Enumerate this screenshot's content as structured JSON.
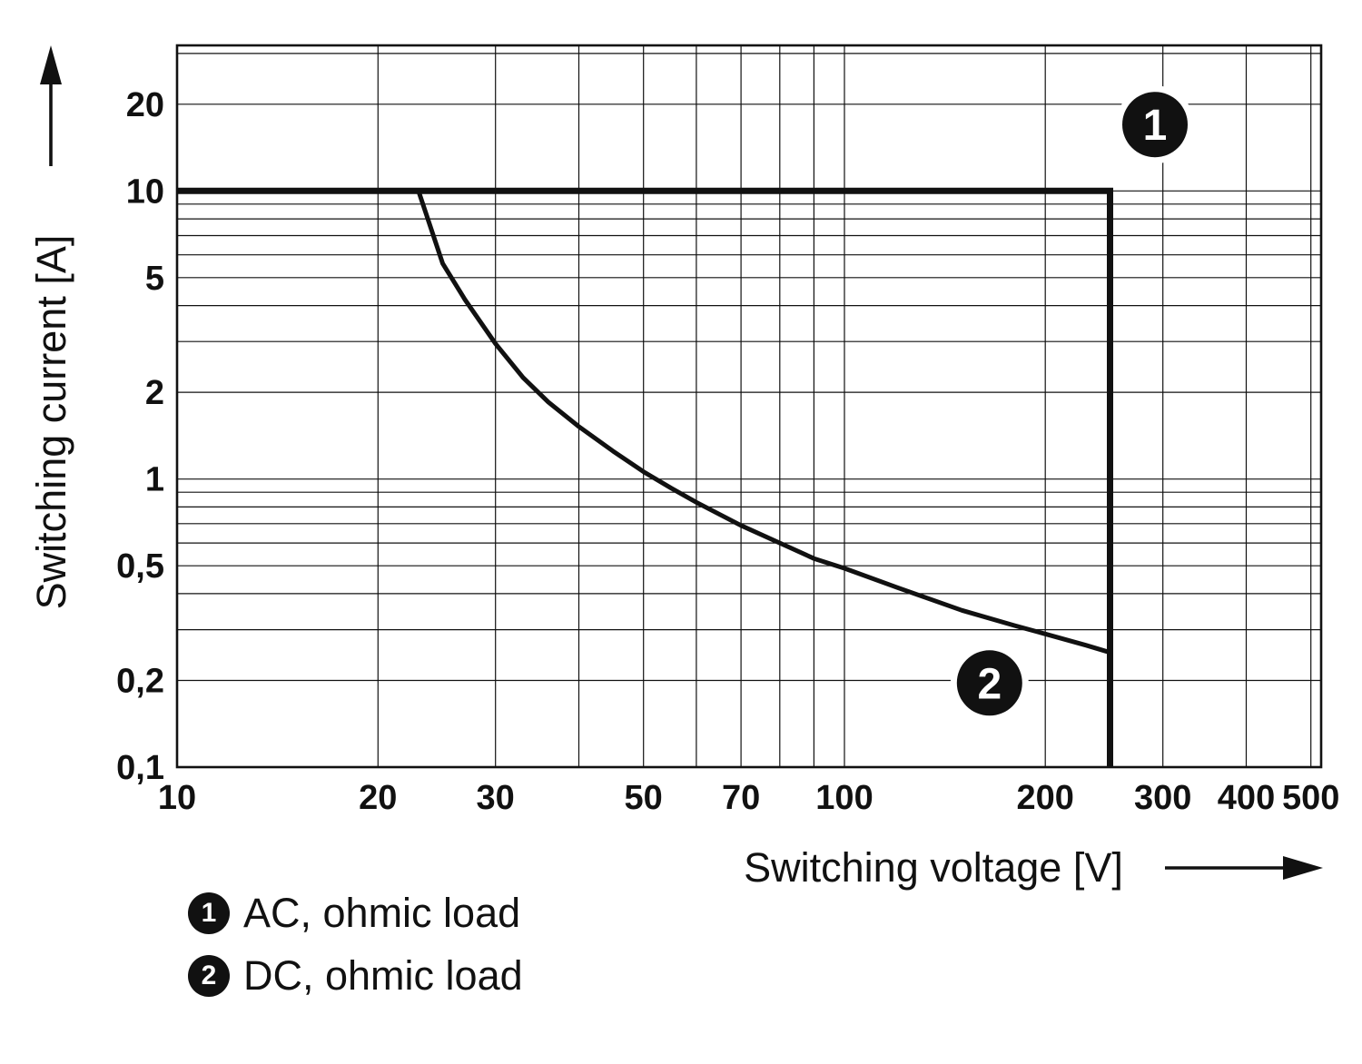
{
  "chart_data": {
    "type": "line",
    "title": "",
    "xlabel": "Switching voltage [V]",
    "ylabel": "Switching current [A]",
    "x_scale": "log",
    "y_scale": "log",
    "xlim": [
      10,
      518
    ],
    "ylim": [
      0.1,
      32
    ],
    "grid": true,
    "legend_position": "below-left",
    "ink_color": "#111111",
    "background": "#ffffff",
    "x_ticks": [
      {
        "v": 10,
        "label": "10"
      },
      {
        "v": 20,
        "label": "20"
      },
      {
        "v": 30,
        "label": "30"
      },
      {
        "v": 50,
        "label": "50"
      },
      {
        "v": 70,
        "label": "70"
      },
      {
        "v": 100,
        "label": "100"
      },
      {
        "v": 200,
        "label": "200"
      },
      {
        "v": 300,
        "label": "300"
      },
      {
        "v": 400,
        "label": "400"
      },
      {
        "v": 500,
        "label": "500"
      }
    ],
    "y_ticks": [
      {
        "v": 20,
        "label": "20"
      },
      {
        "v": 10,
        "label": "10"
      },
      {
        "v": 5,
        "label": "5"
      },
      {
        "v": 2,
        "label": "2"
      },
      {
        "v": 1,
        "label": "1"
      },
      {
        "v": 0.5,
        "label": "0,5"
      },
      {
        "v": 0.2,
        "label": "0,2"
      },
      {
        "v": 0.1,
        "label": "0,1"
      }
    ],
    "x_gridlines": [
      10,
      20,
      30,
      40,
      50,
      60,
      70,
      80,
      90,
      100,
      200,
      300,
      400,
      500
    ],
    "y_gridlines": [
      0.1,
      0.2,
      0.3,
      0.4,
      0.5,
      0.6,
      0.7,
      0.8,
      0.9,
      1,
      2,
      3,
      4,
      5,
      6,
      7,
      8,
      9,
      10,
      20,
      30
    ],
    "series": [
      {
        "id": "1",
        "name": "AC, ohmic load",
        "stroke_width": 7,
        "points": [
          [
            10,
            10
          ],
          [
            250,
            10
          ],
          [
            250,
            0.1
          ]
        ]
      },
      {
        "id": "2",
        "name": "DC, ohmic load",
        "stroke_width": 5,
        "points": [
          [
            23,
            10
          ],
          [
            25,
            5.6
          ],
          [
            27,
            4.2
          ],
          [
            30,
            2.95
          ],
          [
            33,
            2.25
          ],
          [
            36,
            1.85
          ],
          [
            40,
            1.52
          ],
          [
            45,
            1.25
          ],
          [
            50,
            1.06
          ],
          [
            55,
            0.93
          ],
          [
            60,
            0.83
          ],
          [
            70,
            0.69
          ],
          [
            80,
            0.6
          ],
          [
            90,
            0.53
          ],
          [
            100,
            0.49
          ],
          [
            120,
            0.42
          ],
          [
            150,
            0.35
          ],
          [
            180,
            0.31
          ],
          [
            200,
            0.29
          ],
          [
            230,
            0.265
          ],
          [
            250,
            0.25
          ]
        ]
      }
    ],
    "annotations": [
      {
        "label": "1",
        "x": 292,
        "y": 17
      },
      {
        "label": "2",
        "x": 165,
        "y": 0.196
      }
    ]
  },
  "legend": {
    "items": [
      {
        "marker": "1",
        "label": "AC, ohmic load"
      },
      {
        "marker": "2",
        "label": "DC, ohmic load"
      }
    ]
  }
}
